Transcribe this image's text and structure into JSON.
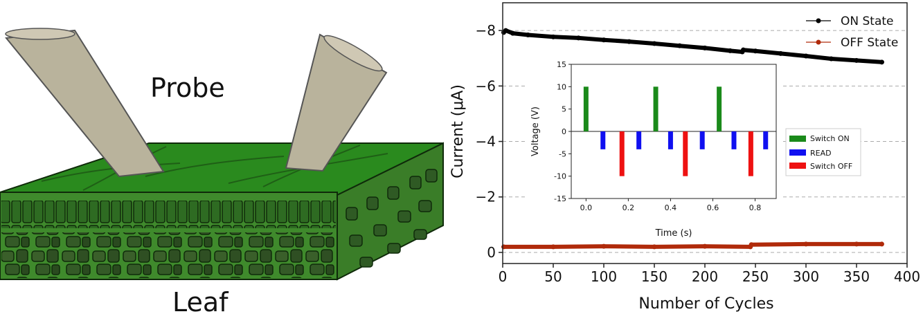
{
  "illustration": {
    "probe_label": "Probe",
    "leaf_label": "Leaf",
    "colors": {
      "leaf_top": "#2a8a1e",
      "leaf_side": "#3f8a2c",
      "cell": "#2f5a24",
      "probe": "#b9b39c"
    }
  },
  "chart_data": [
    {
      "type": "line",
      "xlabel": "Number of Cycles",
      "ylabel": "Current (μA)",
      "xlim": [
        0,
        400
      ],
      "ylim": [
        0.4,
        -9.0
      ],
      "y_inverted": true,
      "x_ticks": [
        0,
        50,
        100,
        150,
        200,
        250,
        300,
        350,
        400
      ],
      "y_ticks": [
        0,
        -2,
        -4,
        -6,
        -8
      ],
      "y_tick_labels": [
        "0",
        "−2",
        "−4",
        "−6",
        "−8"
      ],
      "grid": "horizontal dashed",
      "legend_position": "top-right",
      "series": [
        {
          "name": "ON State",
          "color": "#000000",
          "x": [
            1,
            3,
            10,
            25,
            50,
            75,
            100,
            125,
            150,
            175,
            200,
            225,
            237,
            238,
            250,
            275,
            300,
            325,
            350,
            375
          ],
          "y": [
            -7.93,
            -8.0,
            -7.9,
            -7.84,
            -7.77,
            -7.73,
            -7.66,
            -7.6,
            -7.53,
            -7.45,
            -7.37,
            -7.27,
            -7.23,
            -7.3,
            -7.26,
            -7.17,
            -7.08,
            -6.98,
            -6.92,
            -6.86
          ]
        },
        {
          "name": "OFF State",
          "color": "#b02a0a",
          "x": [
            1,
            50,
            100,
            150,
            200,
            245,
            246,
            300,
            350,
            375
          ],
          "y": [
            -0.2,
            -0.2,
            -0.22,
            -0.2,
            -0.22,
            -0.2,
            -0.28,
            -0.3,
            -0.3,
            -0.3
          ]
        }
      ]
    },
    {
      "type": "bar",
      "xlabel": "Time (s)",
      "ylabel": "Voltage (V)",
      "xlim": [
        -0.07,
        0.9
      ],
      "ylim": [
        -15,
        15
      ],
      "x_ticks": [
        0.0,
        0.2,
        0.4,
        0.6,
        0.8
      ],
      "x_tick_labels": [
        "0.0",
        "0.2",
        "0.4",
        "0.6",
        "0.8"
      ],
      "y_ticks": [
        15,
        10,
        5,
        0,
        -5,
        -10,
        -15
      ],
      "legend_position": "right",
      "series": [
        {
          "name": "Switch ON",
          "color": "#1a8a1a",
          "x": [
            0.0,
            0.33,
            0.63
          ],
          "values": [
            10,
            10,
            10
          ]
        },
        {
          "name": "READ",
          "color": "#1010f0",
          "x": [
            0.08,
            0.25,
            0.4,
            0.55,
            0.7,
            0.85
          ],
          "values": [
            -4,
            -4,
            -4,
            -4,
            -4,
            -4
          ]
        },
        {
          "name": "Switch OFF",
          "color": "#ee1111",
          "x": [
            0.17,
            0.47,
            0.78
          ],
          "values": [
            -10,
            -10,
            -10
          ]
        }
      ]
    }
  ]
}
